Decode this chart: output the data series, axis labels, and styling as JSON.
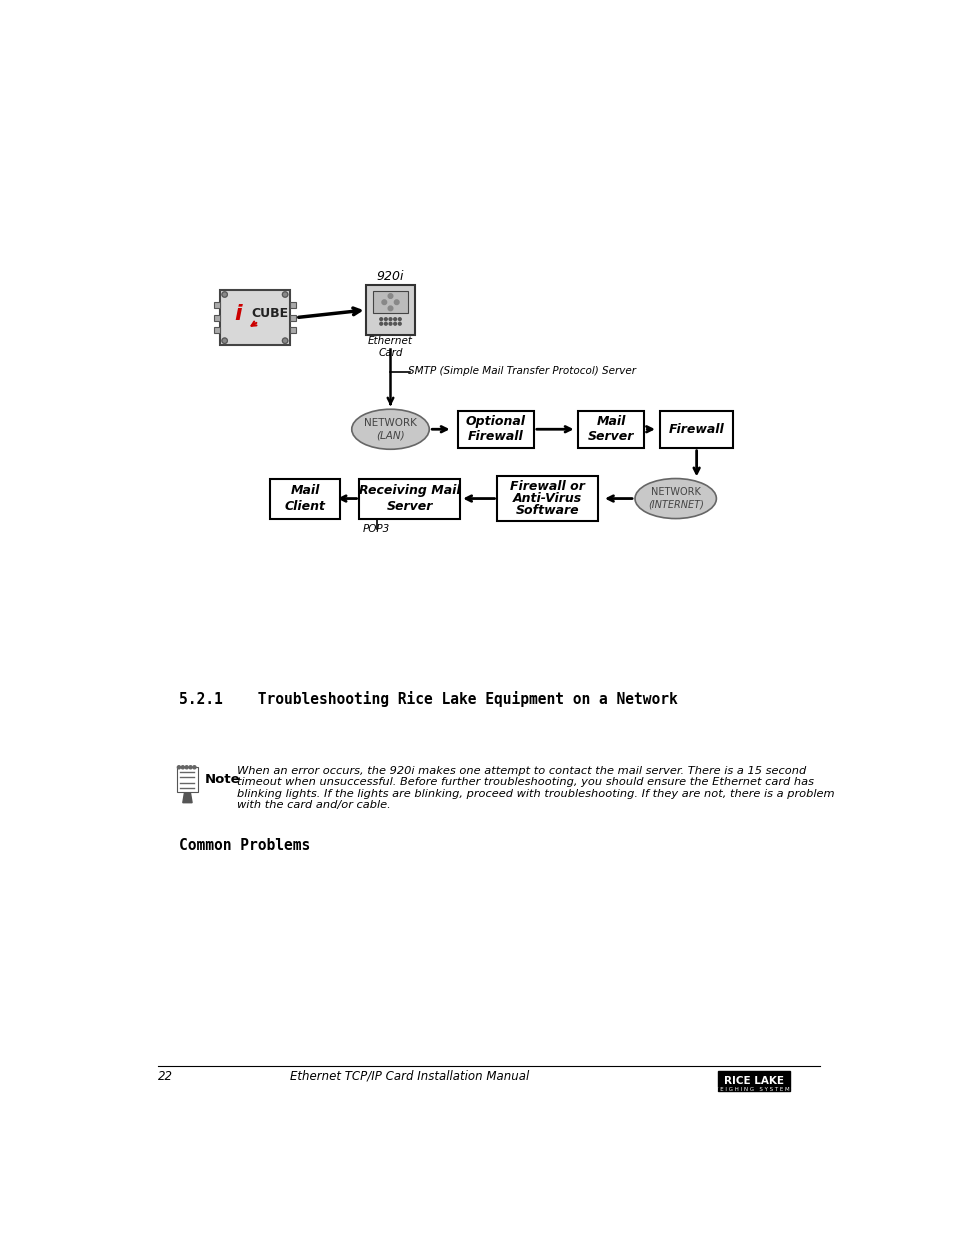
{
  "page_bg": "#ffffff",
  "title_920i": "920i",
  "smtp_label": "SMTP (Simple Mail Transfer Protocol) Server",
  "network_lan_label1": "NETWORK",
  "network_lan_label2": "(LAN)",
  "optional_firewall_label1": "Optional",
  "optional_firewall_label2": "Firewall",
  "mail_server_label1": "Mail",
  "mail_server_label2": "Server",
  "firewall_label": "Firewall",
  "mail_client_label1": "Mail",
  "mail_client_label2": "Client",
  "receiving_mail_server_label1": "Receiving Mail",
  "receiving_mail_server_label2": "Server",
  "firewall_antivirus_label1": "Firewall or",
  "firewall_antivirus_label2": "Anti-Virus",
  "firewall_antivirus_label3": "Software",
  "network_internet_label1": "NETWORK",
  "network_internet_label2": "(INTERNET)",
  "pop3_label": "POP3",
  "ethernet_card_label": "Ethernet\nCard",
  "section_title": "5.2.1    Troubleshooting Rice Lake Equipment on a Network",
  "note_text_line1": "When an error occurs, the 920i makes one attempt to contact the mail server. There is a 15 second",
  "note_text_line2": "timeout when unsuccessful. Before further troubleshooting, you should ensure the Ethernet card has",
  "note_text_line3": "blinking lights. If the lights are blinking, proceed with troubleshooting. If they are not, there is a problem",
  "note_text_line4": "with the card and/or cable.",
  "common_problems_label": "Common Problems",
  "footer_page": "22",
  "footer_manual": "Ethernet TCP/IP Card Installation Manual",
  "ellipse_fill": "#c8c8c8",
  "ellipse_edge": "#666666",
  "box_fill": "#ffffff",
  "box_edge": "#000000"
}
